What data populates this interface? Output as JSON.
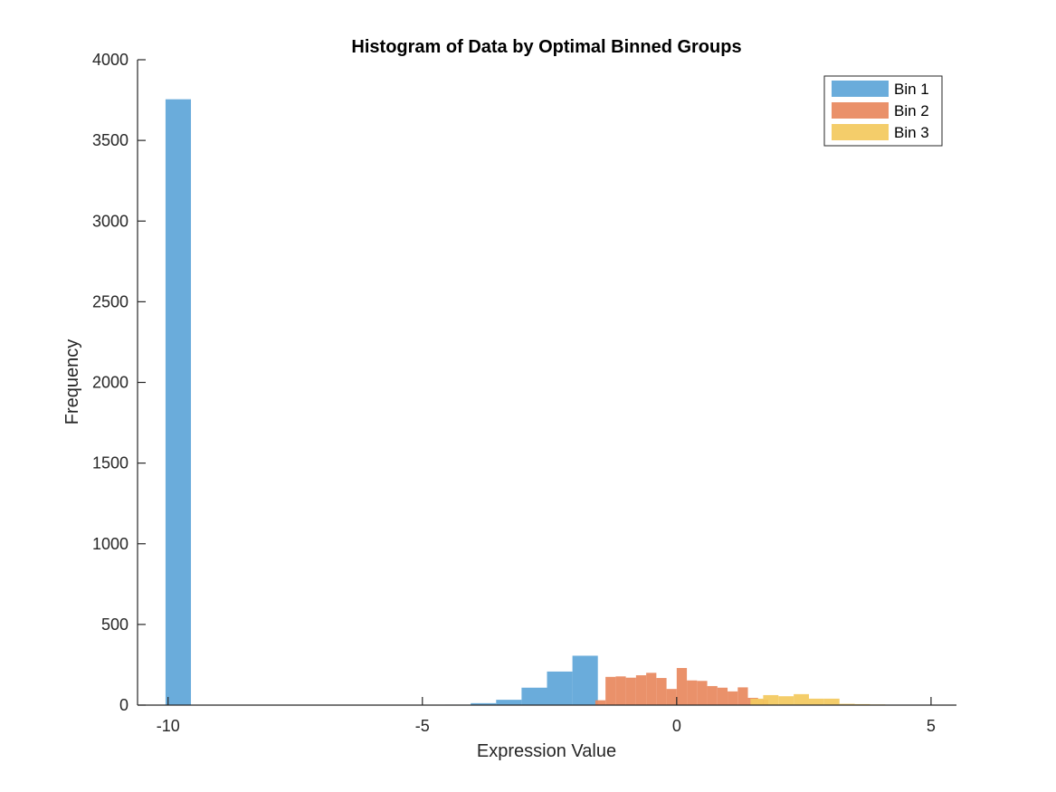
{
  "chart_data": {
    "type": "bar",
    "subtype": "histogram",
    "title": "Histogram of Data by Optimal Binned Groups",
    "xlabel": "Expression Value",
    "ylabel": "Frequency",
    "xlim": [
      -10.6,
      5.5
    ],
    "ylim": [
      0,
      4000
    ],
    "xticks": [
      -10,
      -5,
      0,
      5
    ],
    "yticks": [
      0,
      500,
      1000,
      1500,
      2000,
      2500,
      3000,
      3500,
      4000
    ],
    "grid": false,
    "legend_position": "top-right",
    "series": [
      {
        "name": "Bin 1",
        "color": "#5fa6d8",
        "bins": [
          {
            "x0": -10.05,
            "x1": -9.55,
            "y": 3755
          },
          {
            "x0": -4.55,
            "x1": -4.05,
            "y": 3
          },
          {
            "x0": -4.05,
            "x1": -3.55,
            "y": 12
          },
          {
            "x0": -3.55,
            "x1": -3.05,
            "y": 33
          },
          {
            "x0": -3.05,
            "x1": -2.55,
            "y": 108
          },
          {
            "x0": -2.55,
            "x1": -2.05,
            "y": 208
          },
          {
            "x0": -2.05,
            "x1": -1.55,
            "y": 306
          },
          {
            "x0": -1.55,
            "x1": -1.53,
            "y": 5
          }
        ]
      },
      {
        "name": "Bin 2",
        "color": "#e8895f",
        "bins": [
          {
            "x0": -1.6,
            "x1": -1.4,
            "y": 30
          },
          {
            "x0": -1.4,
            "x1": -1.2,
            "y": 175
          },
          {
            "x0": -1.2,
            "x1": -1.0,
            "y": 178
          },
          {
            "x0": -1.0,
            "x1": -0.8,
            "y": 170
          },
          {
            "x0": -0.8,
            "x1": -0.6,
            "y": 185
          },
          {
            "x0": -0.6,
            "x1": -0.4,
            "y": 200
          },
          {
            "x0": -0.4,
            "x1": -0.2,
            "y": 168
          },
          {
            "x0": -0.2,
            "x1": 0.0,
            "y": 100
          },
          {
            "x0": 0.0,
            "x1": 0.2,
            "y": 230
          },
          {
            "x0": 0.2,
            "x1": 0.4,
            "y": 153
          },
          {
            "x0": 0.4,
            "x1": 0.6,
            "y": 150
          },
          {
            "x0": 0.6,
            "x1": 0.8,
            "y": 118
          },
          {
            "x0": 0.8,
            "x1": 1.0,
            "y": 108
          },
          {
            "x0": 1.0,
            "x1": 1.2,
            "y": 85
          },
          {
            "x0": 1.2,
            "x1": 1.4,
            "y": 110
          },
          {
            "x0": 1.4,
            "x1": 1.6,
            "y": 45
          },
          {
            "x0": 1.6,
            "x1": 1.8,
            "y": 35
          }
        ]
      },
      {
        "name": "Bin 3",
        "color": "#f3c95f",
        "bins": [
          {
            "x0": 1.45,
            "x1": 1.7,
            "y": 40
          },
          {
            "x0": 1.7,
            "x1": 2.0,
            "y": 62
          },
          {
            "x0": 2.0,
            "x1": 2.3,
            "y": 55
          },
          {
            "x0": 2.3,
            "x1": 2.6,
            "y": 68
          },
          {
            "x0": 2.6,
            "x1": 2.9,
            "y": 40
          },
          {
            "x0": 2.9,
            "x1": 3.2,
            "y": 40
          },
          {
            "x0": 3.2,
            "x1": 3.5,
            "y": 8
          },
          {
            "x0": 3.5,
            "x1": 3.8,
            "y": 6
          },
          {
            "x0": 3.8,
            "x1": 4.1,
            "y": 4
          },
          {
            "x0": 4.1,
            "x1": 4.4,
            "y": 2
          }
        ]
      }
    ]
  }
}
